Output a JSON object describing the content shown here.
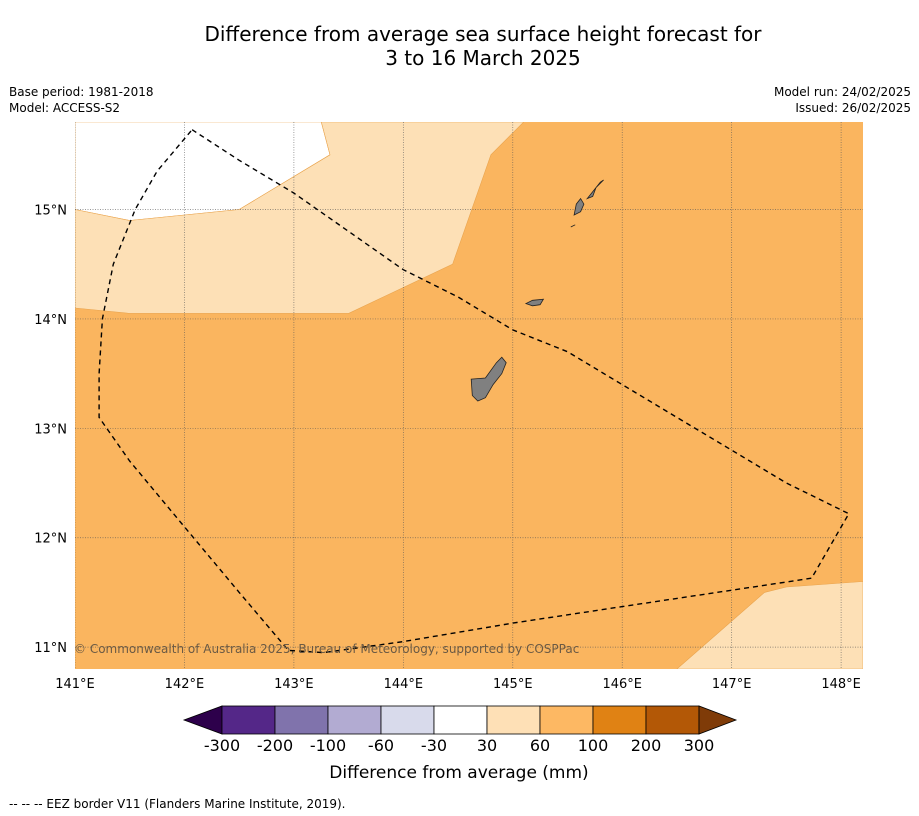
{
  "title_line1": "Difference from average sea surface height forecast for",
  "title_line2": "3 to 16 March 2025",
  "base_period": "Base period: 1981-2018",
  "model": "Model: ACCESS-S2",
  "model_run": "Model run: 24/02/2025",
  "issued": "Issued: 26/02/2025",
  "credit": "© Commonwealth of Australia 2025, Bureau of Meteorology, supported by COSPPac",
  "footnote": "--  --  -- EEZ border V11 (Flanders Marine Institute, 2019).",
  "map": {
    "lon_range": [
      141.0,
      148.2
    ],
    "lat_range": [
      10.8,
      15.8
    ],
    "lon_ticks": [
      {
        "value": 141,
        "label": "141°E"
      },
      {
        "value": 142,
        "label": "142°E"
      },
      {
        "value": 143,
        "label": "143°E"
      },
      {
        "value": 144,
        "label": "144°E"
      },
      {
        "value": 145,
        "label": "145°E"
      },
      {
        "value": 146,
        "label": "146°E"
      },
      {
        "value": 147,
        "label": "147°E"
      },
      {
        "value": 148,
        "label": "148°E"
      }
    ],
    "lat_ticks": [
      {
        "value": 15,
        "label": "15°N"
      },
      {
        "value": 14,
        "label": "14°N"
      },
      {
        "value": 13,
        "label": "13°N"
      },
      {
        "value": 12,
        "label": "12°N"
      },
      {
        "value": 11,
        "label": "11°N"
      }
    ],
    "background_class_color": "#fab55f",
    "regions": [
      {
        "name": "white-region-nw",
        "color": "#ffffff",
        "points": [
          [
            141.0,
            15.8
          ],
          [
            143.25,
            15.8
          ],
          [
            143.33,
            15.5
          ],
          [
            142.5,
            15.0
          ],
          [
            141.5,
            14.9
          ],
          [
            141.0,
            15.0
          ]
        ]
      },
      {
        "name": "light-region-north",
        "color": "#fde0b6",
        "points": [
          [
            141.0,
            15.0
          ],
          [
            141.5,
            14.9
          ],
          [
            142.5,
            15.0
          ],
          [
            143.33,
            15.5
          ],
          [
            143.25,
            15.8
          ],
          [
            145.1,
            15.8
          ],
          [
            144.8,
            15.5
          ],
          [
            144.45,
            14.5
          ],
          [
            143.5,
            14.05
          ],
          [
            141.5,
            14.05
          ],
          [
            141.0,
            14.1
          ]
        ]
      },
      {
        "name": "light-region-southeast",
        "color": "#fde0b6",
        "points": [
          [
            146.5,
            10.8
          ],
          [
            147.3,
            11.5
          ],
          [
            147.5,
            11.55
          ],
          [
            148.2,
            11.6
          ],
          [
            148.2,
            10.8
          ]
        ]
      }
    ],
    "islands": [
      {
        "name": "guam",
        "points": [
          [
            144.62,
            13.45
          ],
          [
            144.75,
            13.46
          ],
          [
            144.85,
            13.6
          ],
          [
            144.9,
            13.65
          ],
          [
            144.94,
            13.6
          ],
          [
            144.9,
            13.5
          ],
          [
            144.82,
            13.4
          ],
          [
            144.75,
            13.28
          ],
          [
            144.68,
            13.25
          ],
          [
            144.63,
            13.3
          ]
        ]
      },
      {
        "name": "rota",
        "points": [
          [
            145.12,
            14.14
          ],
          [
            145.18,
            14.17
          ],
          [
            145.28,
            14.18
          ],
          [
            145.25,
            14.13
          ],
          [
            145.18,
            14.12
          ]
        ]
      },
      {
        "name": "tinian",
        "points": [
          [
            145.56,
            14.95
          ],
          [
            145.62,
            14.98
          ],
          [
            145.65,
            15.05
          ],
          [
            145.62,
            15.1
          ],
          [
            145.58,
            15.05
          ]
        ]
      },
      {
        "name": "saipan",
        "points": [
          [
            145.68,
            15.1
          ],
          [
            145.72,
            15.15
          ],
          [
            145.8,
            15.25
          ],
          [
            145.83,
            15.27
          ],
          [
            145.76,
            15.2
          ],
          [
            145.73,
            15.12
          ]
        ]
      },
      {
        "name": "aguijan",
        "points": [
          [
            145.53,
            14.84
          ],
          [
            145.57,
            14.86
          ],
          [
            145.55,
            14.85
          ]
        ]
      }
    ],
    "eez_border": [
      [
        142.07,
        15.73
      ],
      [
        142.5,
        15.45
      ],
      [
        143.0,
        15.15
      ],
      [
        143.5,
        14.8
      ],
      [
        144.0,
        14.45
      ],
      [
        144.5,
        14.2
      ],
      [
        145.0,
        13.9
      ],
      [
        145.5,
        13.7
      ],
      [
        146.0,
        13.4
      ],
      [
        146.5,
        13.1
      ],
      [
        147.0,
        12.8
      ],
      [
        147.5,
        12.5
      ],
      [
        148.07,
        12.22
      ],
      [
        147.73,
        11.63
      ],
      [
        147.0,
        11.52
      ],
      [
        146.0,
        11.37
      ],
      [
        145.0,
        11.22
      ],
      [
        144.0,
        11.05
      ],
      [
        143.27,
        10.95
      ],
      [
        142.95,
        10.97
      ],
      [
        142.5,
        11.5
      ],
      [
        142.0,
        12.1
      ],
      [
        141.5,
        12.7
      ],
      [
        141.22,
        13.1
      ],
      [
        141.22,
        13.5
      ],
      [
        141.25,
        14.0
      ],
      [
        141.35,
        14.5
      ],
      [
        141.55,
        15.0
      ],
      [
        141.75,
        15.35
      ],
      [
        142.07,
        15.73
      ]
    ]
  },
  "colorbar": {
    "title": "Difference from average (mm)",
    "extend_low_color": "#2d004b",
    "extend_high_color": "#7f3b08",
    "segments": [
      {
        "color": "#542788"
      },
      {
        "color": "#8073ac"
      },
      {
        "color": "#b2abd2"
      },
      {
        "color": "#d8daeb"
      },
      {
        "color": "#ffffff"
      },
      {
        "color": "#fee0b6"
      },
      {
        "color": "#fdb863"
      },
      {
        "color": "#e08214"
      },
      {
        "color": "#b35806"
      }
    ],
    "tick_labels": [
      "-300",
      "-200",
      "-100",
      "-60",
      "-30",
      "30",
      "60",
      "100",
      "200",
      "300"
    ]
  }
}
